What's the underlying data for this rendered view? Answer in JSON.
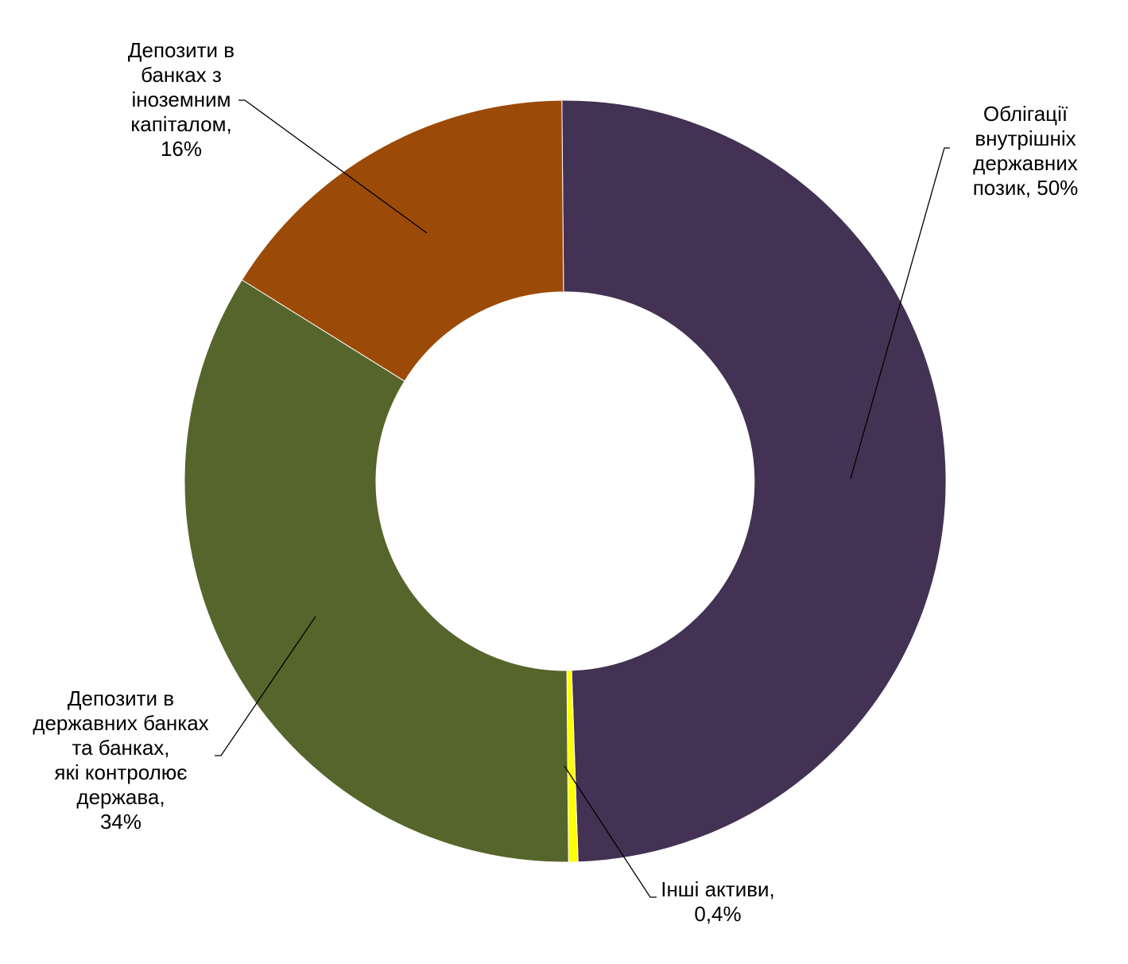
{
  "chart_data": {
    "type": "pie",
    "variant": "donut",
    "title": "",
    "grid": false,
    "legend": "none",
    "slices": [
      {
        "label_lines": [
          "Облігації",
          "внутрішніх",
          "державних",
          "позик, 50%"
        ],
        "value": 49.6,
        "percent_label": "50%",
        "color": "#433254"
      },
      {
        "label_lines": [
          "Інші активи,",
          "0,4%"
        ],
        "value": 0.4,
        "percent_label": "0,4%",
        "color": "#ffff00"
      },
      {
        "label_lines": [
          "Депозити в",
          "державних банках",
          "та банках,",
          "які контролює",
          "держава,",
          "34%"
        ],
        "value": 34,
        "percent_label": "34%",
        "color": "#55652b"
      },
      {
        "label_lines": [
          "Депозити в",
          "банках з",
          "іноземним",
          "капіталом,",
          "16%"
        ],
        "value": 16,
        "percent_label": "16%",
        "color": "#9c4a08"
      }
    ]
  }
}
